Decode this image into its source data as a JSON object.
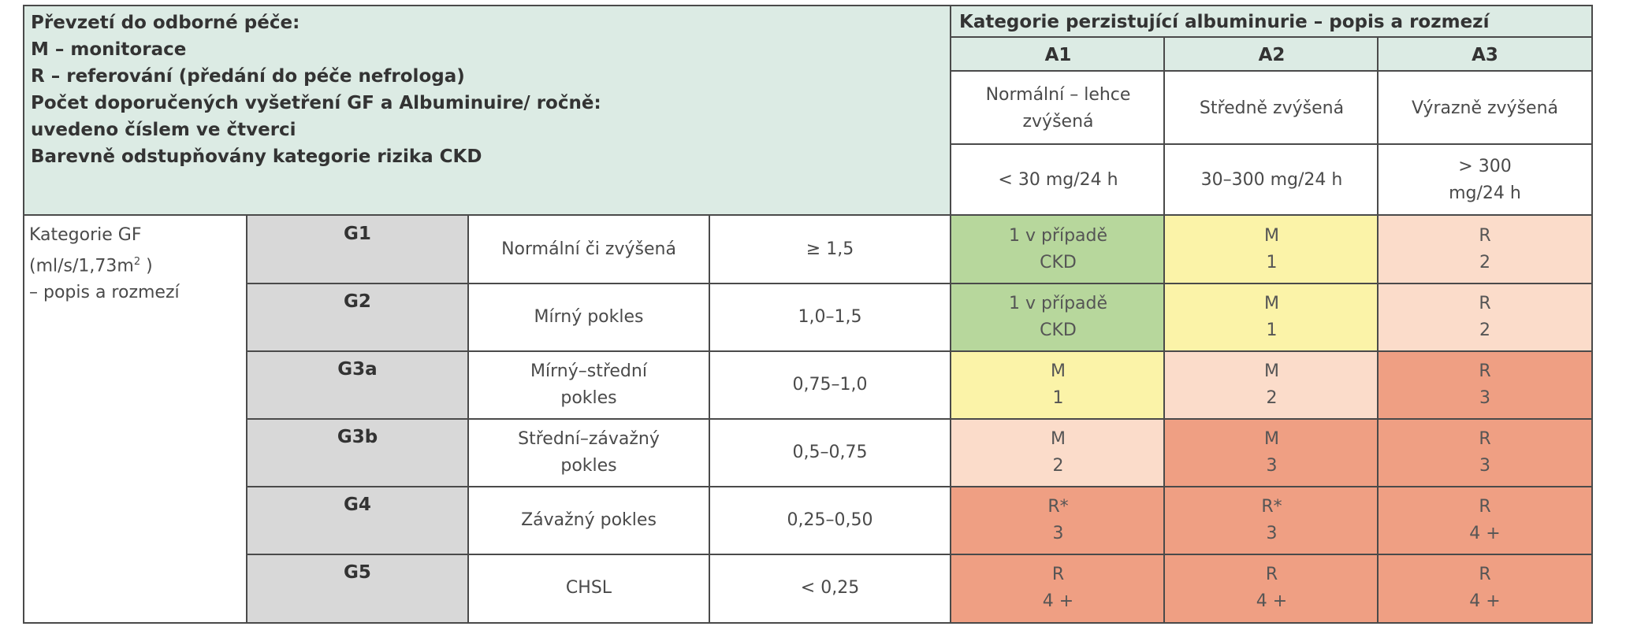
{
  "legend": {
    "lines": [
      "Převzetí do odborné péče:",
      "M – monitorace",
      "R – referování (předání do péče nefrologa)",
      "Počet doporučených vyšetření GF a Albuminuire/ ročně:",
      "uvedeno číslem ve čtverci",
      "Barevně odstupňovány kategorie rizika CKD"
    ]
  },
  "albuminuria": {
    "title": "Kategorie perzistující albuminurie – popis a rozmezí",
    "categories": [
      {
        "code": "A1",
        "desc": "Normální – lehce zvýšená",
        "range": "< 30 mg/24 h"
      },
      {
        "code": "A2",
        "desc": "Středně zvýšená",
        "range": "30–300 mg/24 h"
      },
      {
        "code": "A3",
        "desc": "Výrazně zvýšená",
        "range": "> 300 mg/24 h"
      }
    ]
  },
  "gf": {
    "label_prefix": "Kategorie GF (ml/s/1,73m",
    "label_sup": "2",
    "label_suffix": " )",
    "label_line2": "– popis a rozmezí",
    "rows": [
      {
        "code": "G1",
        "desc": "Normální či zvýšená",
        "range": "≥ 1,5",
        "cells": [
          [
            "1 v případě",
            "CKD"
          ],
          [
            "M",
            "1"
          ],
          [
            "R",
            "2"
          ]
        ]
      },
      {
        "code": "G2",
        "desc": "Mírný pokles",
        "range": "1,0–1,5",
        "cells": [
          [
            "1 v případě",
            "CKD"
          ],
          [
            "M",
            "1"
          ],
          [
            "R",
            "2"
          ]
        ]
      },
      {
        "code": "G3a",
        "desc": "Mírný–střední pokles",
        "range": "0,75–1,0",
        "cells": [
          [
            "M",
            "1"
          ],
          [
            "M",
            "2"
          ],
          [
            "R",
            "3"
          ]
        ]
      },
      {
        "code": "G3b",
        "desc": "Střední–závažný pokles",
        "range": "0,5–0,75",
        "cells": [
          [
            "M",
            "2"
          ],
          [
            "M",
            "3"
          ],
          [
            "R",
            "3"
          ]
        ]
      },
      {
        "code": "G4",
        "desc": "Závažný pokles",
        "range": "0,25–0,50",
        "cells": [
          [
            "R*",
            "3"
          ],
          [
            "R*",
            "3"
          ],
          [
            "R",
            "4 +"
          ]
        ]
      },
      {
        "code": "G5",
        "desc": "CHSL",
        "range": "< 0,25",
        "cells": [
          [
            "R",
            "4 +"
          ],
          [
            "R",
            "4 +"
          ],
          [
            "R",
            "4 +"
          ]
        ]
      }
    ]
  },
  "risk_colors": {
    "green": "#b7d79c",
    "yellow": "#fbf3a8",
    "light_orange": "#fbdcca",
    "orange": "#ef9f83"
  },
  "risk_grid": [
    [
      "green",
      "yellow",
      "light_orange"
    ],
    [
      "green",
      "yellow",
      "light_orange"
    ],
    [
      "yellow",
      "light_orange",
      "orange"
    ],
    [
      "light_orange",
      "orange",
      "orange"
    ],
    [
      "orange",
      "orange",
      "orange"
    ],
    [
      "orange",
      "orange",
      "orange"
    ]
  ]
}
